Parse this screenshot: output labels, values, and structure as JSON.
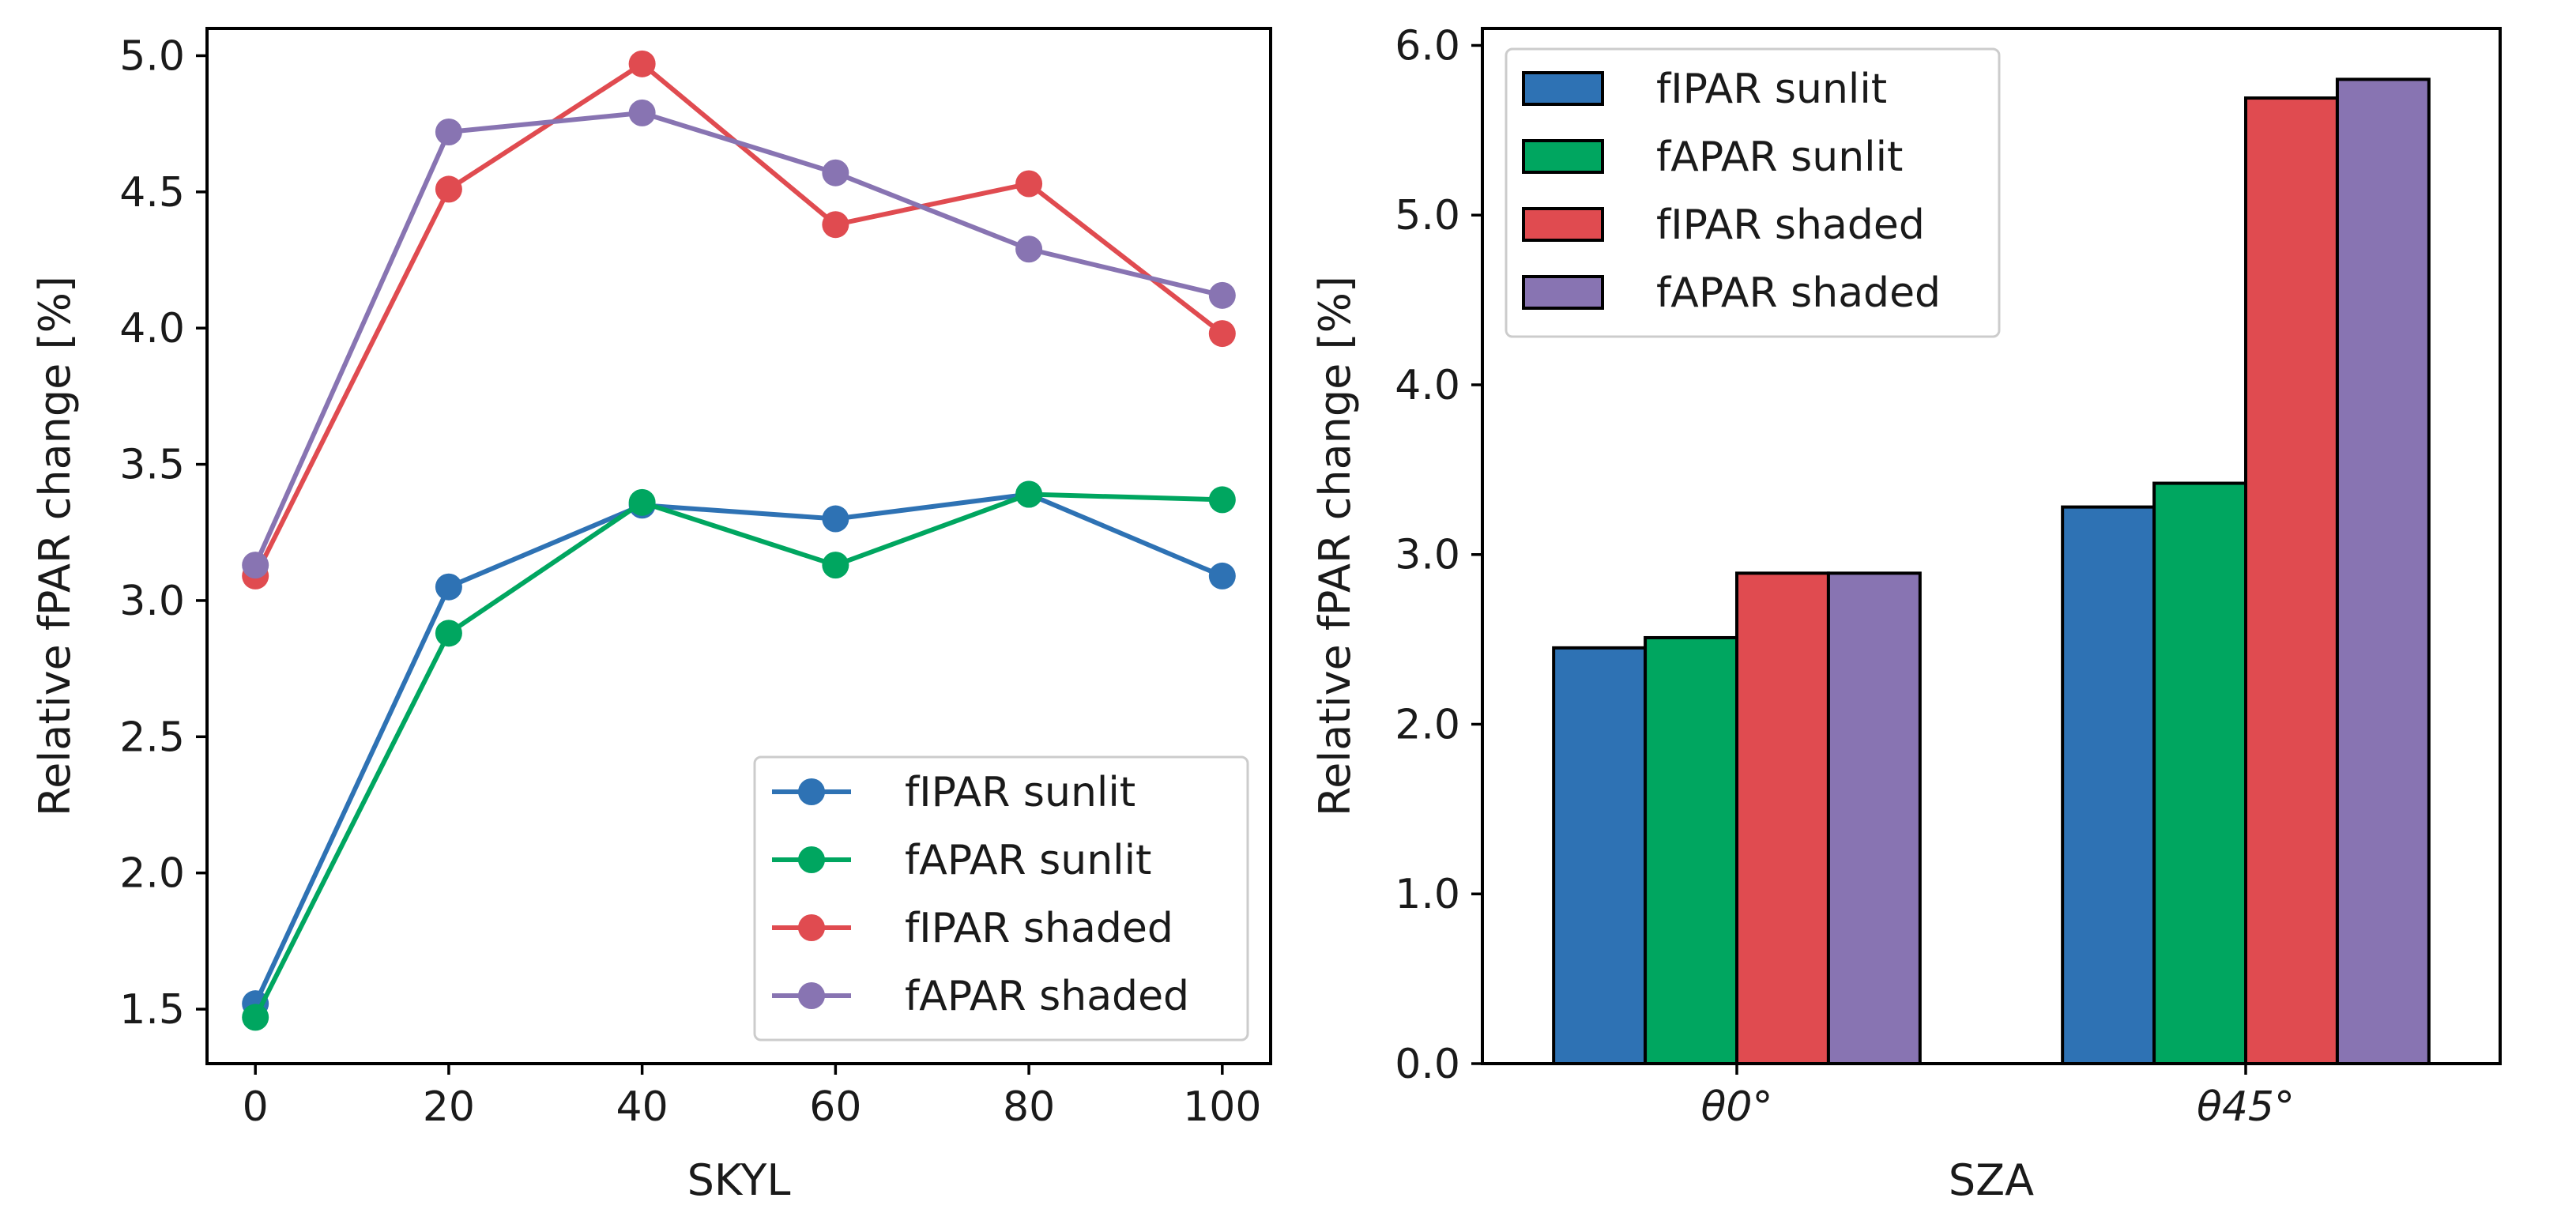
{
  "chart_data": [
    {
      "type": "line",
      "title": "",
      "xlabel": "SKYL",
      "ylabel": "Relative fPAR change [%]",
      "x": [
        0,
        20,
        40,
        60,
        80,
        100
      ],
      "xlim": [
        -5,
        105
      ],
      "ylim": [
        1.3,
        5.1
      ],
      "xticks": [
        0,
        20,
        40,
        60,
        80,
        100
      ],
      "xtick_labels": [
        "0",
        "20",
        "40",
        "60",
        "80",
        "100"
      ],
      "yticks": [
        1.5,
        2.0,
        2.5,
        3.0,
        3.5,
        4.0,
        4.5,
        5.0
      ],
      "ytick_labels": [
        "1.5",
        "2.0",
        "2.5",
        "3.0",
        "3.5",
        "4.0",
        "4.5",
        "5.0"
      ],
      "legend_position": "lower-right",
      "series": [
        {
          "name": "fIPAR sunlit",
          "color": "#2e72b4",
          "values": [
            1.52,
            3.05,
            3.35,
            3.3,
            3.39,
            3.09
          ]
        },
        {
          "name": "fAPAR sunlit",
          "color": "#00a660",
          "values": [
            1.47,
            2.88,
            3.36,
            3.13,
            3.39,
            3.37
          ]
        },
        {
          "name": "fIPAR shaded",
          "color": "#e04b50",
          "values": [
            3.09,
            4.51,
            4.97,
            4.38,
            4.53,
            3.98
          ]
        },
        {
          "name": "fAPAR shaded",
          "color": "#8874b2",
          "values": [
            3.13,
            4.72,
            4.79,
            4.57,
            4.29,
            4.12
          ]
        }
      ]
    },
    {
      "type": "bar",
      "title": "",
      "xlabel": "SZA",
      "ylabel": "Relative fPAR change [%]",
      "categories": [
        "θ0°",
        "θ45°"
      ],
      "ylim": [
        0,
        6.1
      ],
      "yticks": [
        0,
        1,
        2,
        3,
        4,
        5,
        6
      ],
      "ytick_labels": [
        "0.0",
        "1.0",
        "2.0",
        "3.0",
        "4.0",
        "5.0",
        "6.0"
      ],
      "legend_position": "top-left",
      "series": [
        {
          "name": "fIPAR sunlit",
          "color": "#2e72b4",
          "values": [
            2.45,
            3.28
          ]
        },
        {
          "name": "fAPAR sunlit",
          "color": "#00a660",
          "values": [
            2.51,
            3.42
          ]
        },
        {
          "name": "fIPAR shaded",
          "color": "#e04b50",
          "values": [
            2.89,
            5.69
          ]
        },
        {
          "name": "fAPAR shaded",
          "color": "#8874b2",
          "values": [
            2.89,
            5.8
          ]
        }
      ]
    }
  ]
}
